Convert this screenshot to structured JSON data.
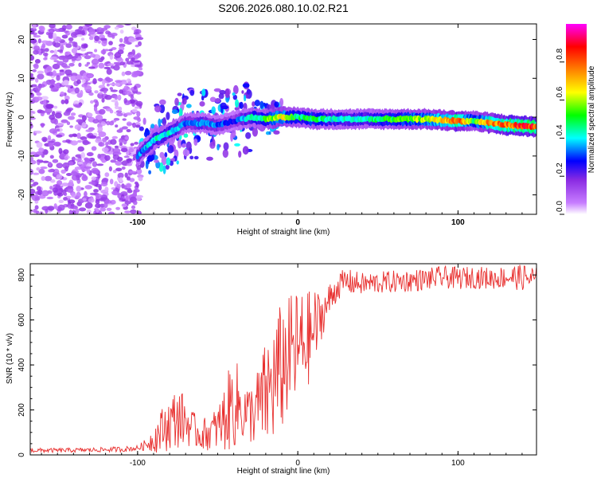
{
  "chart_data": [
    {
      "type": "heatmap",
      "title": "S206.2026.080.10.02.R21",
      "xlabel": "Height of straight line (km)",
      "ylabel": "Frequency (Hz)",
      "xlim": [
        -167,
        149
      ],
      "ylim": [
        -25,
        24
      ],
      "xticks": [
        -100,
        0,
        100
      ],
      "xtick_labels": [
        "-100",
        "0",
        "100"
      ],
      "yticks": [
        -20,
        -10,
        0,
        10,
        20
      ],
      "ytick_labels": [
        "-20",
        "-10",
        "0",
        "10",
        "20"
      ],
      "colorbar": {
        "label": "Normalized spectral amplitude",
        "range": [
          0,
          1
        ],
        "ticks": [
          0,
          0.2,
          0.4,
          0.6,
          0.8
        ],
        "tick_labels": [
          "0.0",
          "0.2",
          "0.4",
          "0.6",
          "0.8"
        ],
        "colormap": [
          "#ffffff",
          "#c77dff",
          "#8a2be2",
          "#0000ff",
          "#00ffff",
          "#00ff00",
          "#ffff00",
          "#ff8000",
          "#ff0000",
          "#ff00ff"
        ]
      },
      "ridge": {
        "x": [
          -100,
          -90,
          -80,
          -70,
          -60,
          -50,
          -40,
          -30,
          -20,
          -10,
          0,
          10,
          20,
          40,
          60,
          80,
          100,
          110,
          120,
          130,
          149
        ],
        "frequency": [
          -10,
          -6,
          -4,
          -1.5,
          -1.5,
          -2,
          -1,
          0,
          -0.5,
          0,
          0,
          -0.5,
          -0.5,
          -0.5,
          -0.5,
          -0.5,
          -1,
          -1,
          -1.5,
          -2,
          -2.5
        ],
        "amplitude": [
          0.35,
          0.45,
          0.45,
          0.35,
          0.4,
          0.35,
          0.3,
          0.45,
          0.55,
          0.7,
          0.5,
          0.55,
          0.45,
          0.45,
          0.55,
          0.65,
          0.85,
          0.55,
          0.8,
          0.85,
          0.9
        ]
      },
      "noise_region": {
        "x_range": [
          -167,
          -98
        ],
        "amplitude": 0.15
      }
    },
    {
      "type": "line",
      "title": "",
      "xlabel": "Height of straight line (km)",
      "ylabel": "SNR (10 * v/v)",
      "xlim": [
        -167,
        149
      ],
      "ylim": [
        0,
        850
      ],
      "xticks": [
        -100,
        0,
        100
      ],
      "xtick_labels": [
        "-100",
        "0",
        "100"
      ],
      "yticks": [
        0,
        200,
        400,
        600,
        800
      ],
      "ytick_labels": [
        "0",
        "200",
        "400",
        "600",
        "800"
      ],
      "color": "#e8302f",
      "series": [
        {
          "name": "SNR",
          "x": [
            -167,
            -150,
            -130,
            -110,
            -100,
            -95,
            -90,
            -85,
            -80,
            -75,
            -70,
            -65,
            -60,
            -55,
            -50,
            -45,
            -40,
            -35,
            -30,
            -25,
            -20,
            -15,
            -10,
            -5,
            0,
            5,
            10,
            15,
            20,
            25,
            30,
            40,
            50,
            60,
            70,
            80,
            90,
            100,
            110,
            120,
            130,
            140,
            149
          ],
          "y": [
            20,
            20,
            22,
            25,
            30,
            45,
            70,
            110,
            140,
            170,
            150,
            110,
            90,
            100,
            120,
            170,
            240,
            200,
            180,
            210,
            260,
            320,
            390,
            450,
            470,
            500,
            550,
            620,
            690,
            750,
            770,
            760,
            765,
            770,
            775,
            780,
            790,
            785,
            790,
            785,
            790,
            790,
            780
          ],
          "spread": [
            10,
            10,
            10,
            12,
            12,
            25,
            60,
            100,
            120,
            140,
            110,
            80,
            70,
            80,
            100,
            160,
            220,
            150,
            130,
            180,
            250,
            280,
            300,
            260,
            280,
            220,
            200,
            100,
            80,
            60,
            60,
            50,
            50,
            50,
            50,
            50,
            50,
            50,
            50,
            50,
            50,
            60,
            60
          ]
        }
      ]
    }
  ]
}
